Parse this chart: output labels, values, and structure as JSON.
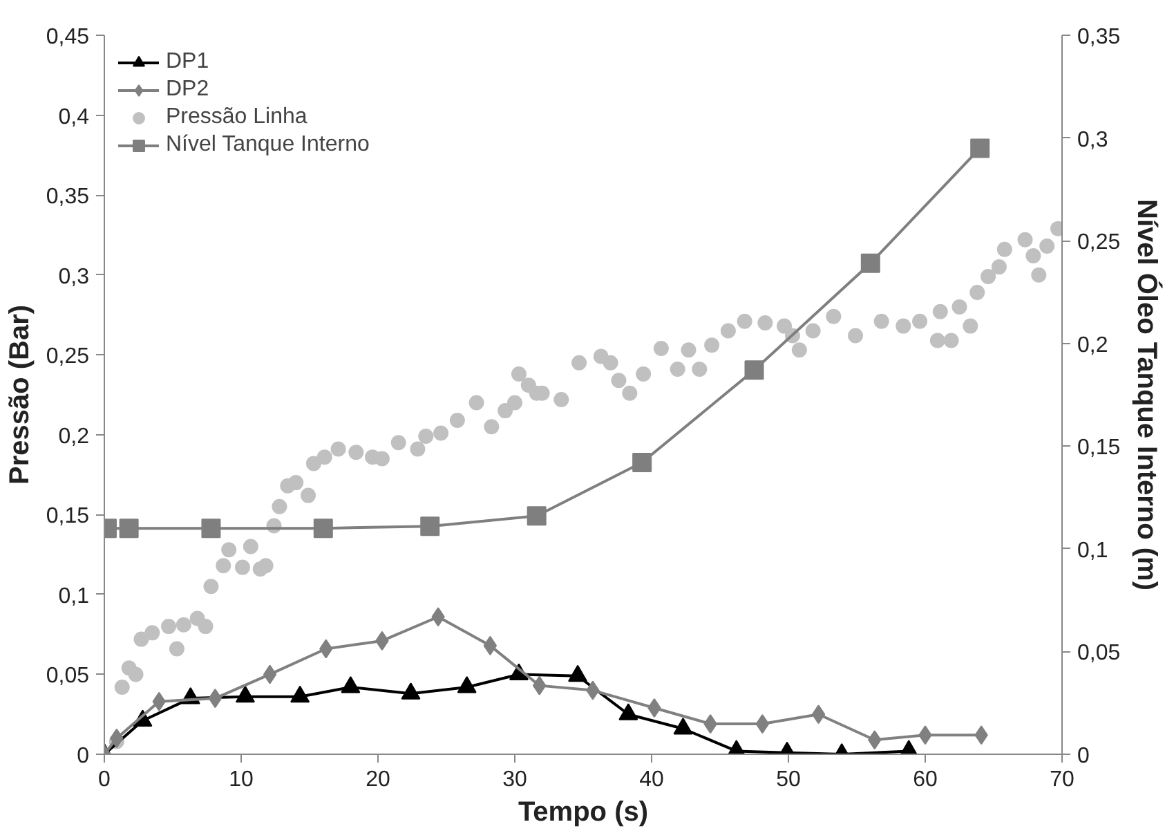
{
  "chart_data": {
    "type": "line",
    "xlabel": "Tempo (s)",
    "ylabel": "Pressão (Bar)",
    "y2label": "Nível Óleo Tanque Interno (m)",
    "xlim": [
      0,
      70
    ],
    "xticks": [
      0,
      10,
      20,
      30,
      40,
      50,
      60,
      70
    ],
    "ylim": [
      0,
      0.45
    ],
    "yticks": [
      0,
      {
        "value": 0.05,
        "label": "0,05"
      },
      {
        "value": 0.1,
        "label": "0,1"
      },
      {
        "value": 0.15,
        "label": "0,15"
      },
      {
        "value": 0.2,
        "label": "0,2"
      },
      {
        "value": 0.25,
        "label": "0,25"
      },
      {
        "value": 0.3,
        "label": "0,3"
      },
      {
        "value": 0.35,
        "label": "0,35"
      },
      {
        "value": 0.4,
        "label": "0,4"
      },
      {
        "value": 0.45,
        "label": "0,45"
      }
    ],
    "y2lim": [
      0,
      0.35
    ],
    "y2ticks": [
      0,
      {
        "value": 0.05,
        "label": "0,05"
      },
      {
        "value": 0.1,
        "label": "0,1"
      },
      {
        "value": 0.15,
        "label": "0,15"
      },
      {
        "value": 0.2,
        "label": "0,2"
      },
      {
        "value": 0.25,
        "label": "0,25"
      },
      {
        "value": 0.3,
        "label": "0,3"
      },
      {
        "value": 0.35,
        "label": "0,35"
      }
    ],
    "grid": false,
    "legend": "top left",
    "series": [
      {
        "name": "DP1",
        "marker": "triangle",
        "color": "#000000",
        "x": [
          0,
          2.8,
          6.3,
          10.3,
          14.3,
          18.0,
          22.4,
          26.5,
          30.3,
          34.6,
          38.3,
          42.3,
          46.2,
          49.9,
          53.9,
          58.8
        ],
        "values": [
          0,
          0.021,
          0.035,
          0.036,
          0.036,
          0.042,
          0.038,
          0.042,
          0.05,
          0.049,
          0.025,
          0.016,
          0.002,
          0.001,
          0,
          0.002
        ]
      },
      {
        "name": "DP2",
        "marker": "diamond",
        "color": "#808080",
        "x": [
          0,
          0.9,
          4.0,
          8.1,
          12.1,
          16.2,
          20.3,
          24.4,
          28.2,
          31.8,
          35.7,
          40.2,
          44.3,
          48.1,
          52.2,
          56.3,
          60.0,
          64.1
        ],
        "values": [
          0,
          0.01,
          0.033,
          0.035,
          0.05,
          0.066,
          0.071,
          0.086,
          0.068,
          0.043,
          0.04,
          0.029,
          0.019,
          0.019,
          0.025,
          0.009,
          0.012,
          0.012
        ]
      },
      {
        "name": "Pressão Linha",
        "type": "scatter",
        "marker": "circle",
        "color": "#c0c0c0",
        "x": [
          0.9,
          1.3,
          1.8,
          2.3,
          2.7,
          3.5,
          4.7,
          5.3,
          5.8,
          6.8,
          7.4,
          7.8,
          8.7,
          9.1,
          10.1,
          10.7,
          11.4,
          11.8,
          12.4,
          12.8,
          13.4,
          14.0,
          14.9,
          15.3,
          16.1,
          17.1,
          18.4,
          19.6,
          20.3,
          21.5,
          22.9,
          23.5,
          24.6,
          25.8,
          27.2,
          28.3,
          29.3,
          30.0,
          30.3,
          31.0,
          31.6,
          32.0,
          33.4,
          34.7,
          36.3,
          37.0,
          37.6,
          38.4,
          39.4,
          40.7,
          41.9,
          42.7,
          43.5,
          44.4,
          45.6,
          46.8,
          48.3,
          49.7,
          50.3,
          50.8,
          51.8,
          53.3,
          54.9,
          56.8,
          58.4,
          59.6,
          60.9,
          61.1,
          61.9,
          62.5,
          63.3,
          63.8,
          64.6,
          65.4,
          65.8,
          67.3,
          67.9,
          68.3,
          68.9,
          69.7
        ],
        "values": [
          0.008,
          0.042,
          0.054,
          0.05,
          0.072,
          0.076,
          0.08,
          0.066,
          0.081,
          0.085,
          0.08,
          0.105,
          0.118,
          0.128,
          0.117,
          0.13,
          0.116,
          0.118,
          0.143,
          0.155,
          0.168,
          0.17,
          0.162,
          0.182,
          0.186,
          0.191,
          0.189,
          0.186,
          0.185,
          0.195,
          0.191,
          0.199,
          0.201,
          0.209,
          0.22,
          0.205,
          0.215,
          0.22,
          0.238,
          0.231,
          0.226,
          0.226,
          0.222,
          0.245,
          0.249,
          0.245,
          0.234,
          0.226,
          0.238,
          0.254,
          0.241,
          0.253,
          0.241,
          0.256,
          0.265,
          0.271,
          0.27,
          0.268,
          0.262,
          0.253,
          0.265,
          0.274,
          0.262,
          0.271,
          0.268,
          0.271,
          0.259,
          0.277,
          0.259,
          0.28,
          0.268,
          0.289,
          0.299,
          0.305,
          0.316,
          0.322,
          0.312,
          0.3,
          0.318,
          0.329
        ]
      },
      {
        "name": "Nível Tanque Interno",
        "marker": "square",
        "axis": "y2",
        "color": "#7f7f7f",
        "x": [
          0.2,
          1.8,
          7.8,
          16.0,
          23.8,
          31.6,
          39.3,
          47.5,
          56.0,
          64.0
        ],
        "values": [
          0.11,
          0.11,
          0.11,
          0.11,
          0.111,
          0.116,
          0.142,
          0.187,
          0.239,
          0.295
        ]
      }
    ]
  }
}
